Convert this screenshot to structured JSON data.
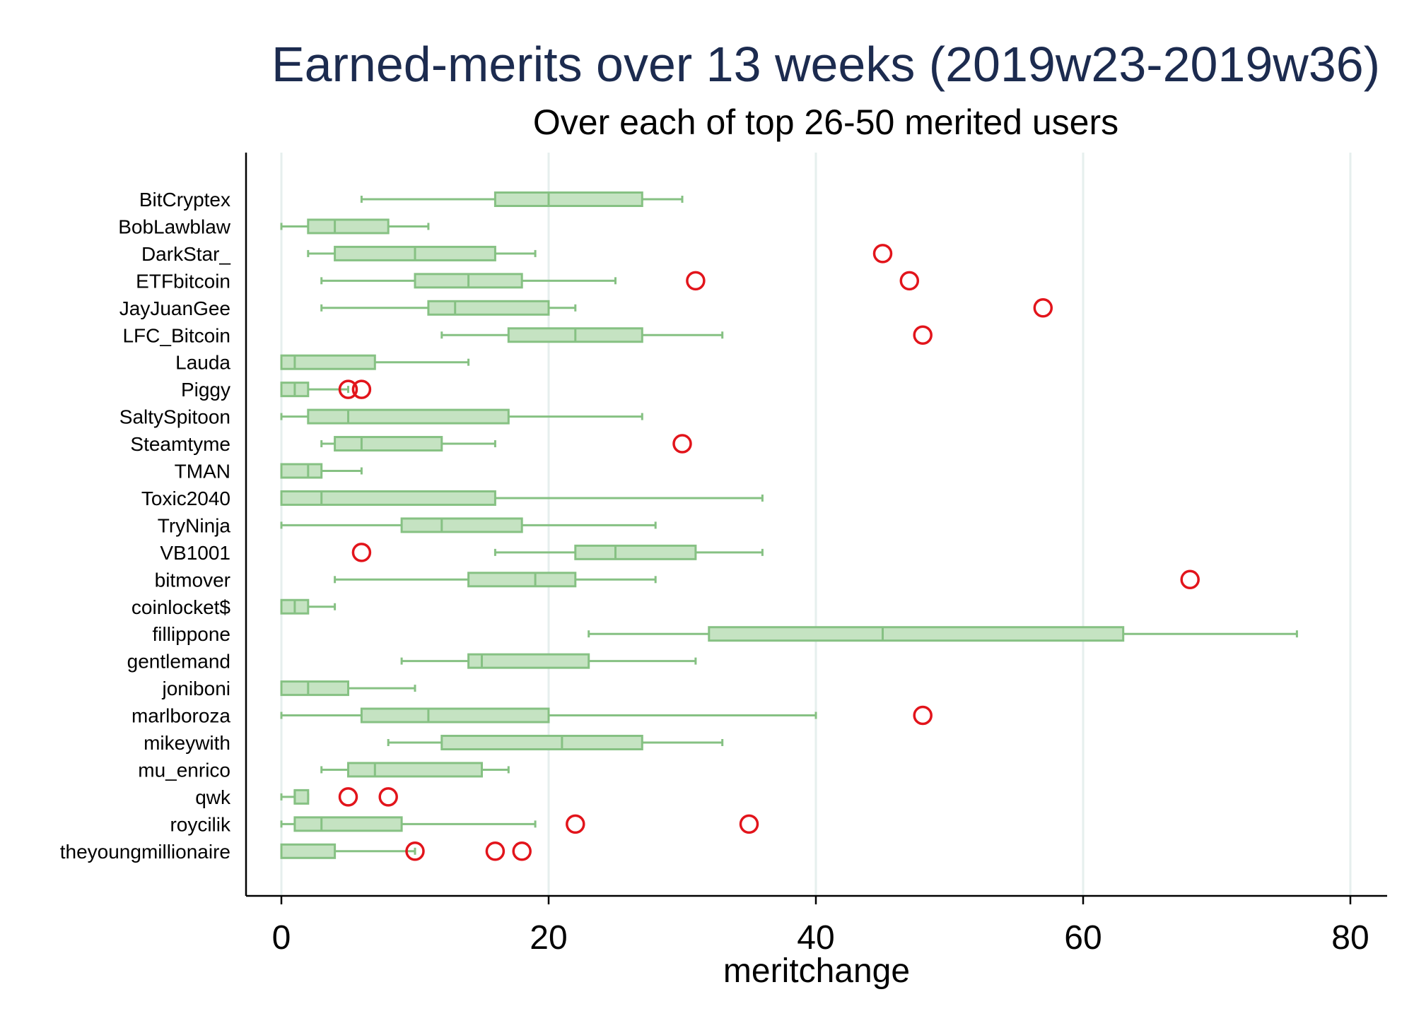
{
  "chart_data": {
    "type": "boxplot",
    "orientation": "horizontal",
    "title": "Earned-merits over 13 weeks (2019w23-2019w36)",
    "subtitle": "Over each of top 26-50 merited users",
    "xlabel": "meritchange",
    "xlim": [
      0,
      80
    ],
    "xticks": [
      0,
      20,
      40,
      60,
      80
    ],
    "grid": true,
    "colors": {
      "box_fill": "#c5e3c2",
      "box_stroke": "#86c183",
      "outlier": "#e2141b",
      "grid": "#e6efee",
      "title": "#1c2b4f"
    },
    "series": [
      {
        "name": "BitCryptex",
        "whisker_low": 6,
        "q1": 16,
        "median": 20,
        "q3": 27,
        "whisker_high": 30,
        "outliers": []
      },
      {
        "name": "BobLawblaw",
        "whisker_low": 0,
        "q1": 2,
        "median": 4,
        "q3": 8,
        "whisker_high": 11,
        "outliers": []
      },
      {
        "name": "DarkStar_",
        "whisker_low": 2,
        "q1": 4,
        "median": 10,
        "q3": 16,
        "whisker_high": 19,
        "outliers": [
          45
        ]
      },
      {
        "name": "ETFbitcoin",
        "whisker_low": 3,
        "q1": 10,
        "median": 14,
        "q3": 18,
        "whisker_high": 25,
        "outliers": [
          31,
          47
        ]
      },
      {
        "name": "JayJuanGee",
        "whisker_low": 3,
        "q1": 11,
        "median": 13,
        "q3": 20,
        "whisker_high": 22,
        "outliers": [
          57
        ]
      },
      {
        "name": "LFC_Bitcoin",
        "whisker_low": 12,
        "q1": 17,
        "median": 22,
        "q3": 27,
        "whisker_high": 33,
        "outliers": [
          48
        ]
      },
      {
        "name": "Lauda",
        "whisker_low": 0,
        "q1": 0,
        "median": 1,
        "q3": 7,
        "whisker_high": 14,
        "outliers": []
      },
      {
        "name": "Piggy",
        "whisker_low": 0,
        "q1": 0,
        "median": 1,
        "q3": 2,
        "whisker_high": 5,
        "outliers": [
          5,
          6
        ]
      },
      {
        "name": "SaltySpitoon",
        "whisker_low": 0,
        "q1": 2,
        "median": 5,
        "q3": 17,
        "whisker_high": 27,
        "outliers": []
      },
      {
        "name": "Steamtyme",
        "whisker_low": 3,
        "q1": 4,
        "median": 6,
        "q3": 12,
        "whisker_high": 16,
        "outliers": [
          30
        ]
      },
      {
        "name": "TMAN",
        "whisker_low": 0,
        "q1": 0,
        "median": 2,
        "q3": 3,
        "whisker_high": 6,
        "outliers": []
      },
      {
        "name": "Toxic2040",
        "whisker_low": 0,
        "q1": 0,
        "median": 3,
        "q3": 16,
        "whisker_high": 36,
        "outliers": []
      },
      {
        "name": "TryNinja",
        "whisker_low": 0,
        "q1": 9,
        "median": 12,
        "q3": 18,
        "whisker_high": 28,
        "outliers": []
      },
      {
        "name": "VB1001",
        "whisker_low": 16,
        "q1": 22,
        "median": 25,
        "q3": 31,
        "whisker_high": 36,
        "outliers": [
          6
        ]
      },
      {
        "name": "bitmover",
        "whisker_low": 4,
        "q1": 14,
        "median": 19,
        "q3": 22,
        "whisker_high": 28,
        "outliers": [
          68
        ]
      },
      {
        "name": "coinlocket$",
        "whisker_low": 0,
        "q1": 0,
        "median": 1,
        "q3": 2,
        "whisker_high": 4,
        "outliers": []
      },
      {
        "name": "fillippone",
        "whisker_low": 23,
        "q1": 32,
        "median": 45,
        "q3": 63,
        "whisker_high": 76,
        "outliers": []
      },
      {
        "name": "gentlemand",
        "whisker_low": 9,
        "q1": 14,
        "median": 15,
        "q3": 23,
        "whisker_high": 31,
        "outliers": []
      },
      {
        "name": "joniboni",
        "whisker_low": 0,
        "q1": 0,
        "median": 2,
        "q3": 5,
        "whisker_high": 10,
        "outliers": []
      },
      {
        "name": "marlboroza",
        "whisker_low": 0,
        "q1": 6,
        "median": 11,
        "q3": 20,
        "whisker_high": 40,
        "outliers": [
          48
        ]
      },
      {
        "name": "mikeywith",
        "whisker_low": 8,
        "q1": 12,
        "median": 21,
        "q3": 27,
        "whisker_high": 33,
        "outliers": []
      },
      {
        "name": "mu_enrico",
        "whisker_low": 3,
        "q1": 5,
        "median": 7,
        "q3": 15,
        "whisker_high": 17,
        "outliers": []
      },
      {
        "name": "qwk",
        "whisker_low": 0,
        "q1": 1,
        "median": 1,
        "q3": 2,
        "whisker_high": 2,
        "outliers": [
          5,
          8
        ]
      },
      {
        "name": "roycilik",
        "whisker_low": 0,
        "q1": 1,
        "median": 3,
        "q3": 9,
        "whisker_high": 19,
        "outliers": [
          22,
          35
        ]
      },
      {
        "name": "theyoungmillionaire",
        "whisker_low": 0,
        "q1": 0,
        "median": 0,
        "q3": 4,
        "whisker_high": 10,
        "outliers": [
          10,
          16,
          18
        ]
      }
    ]
  }
}
